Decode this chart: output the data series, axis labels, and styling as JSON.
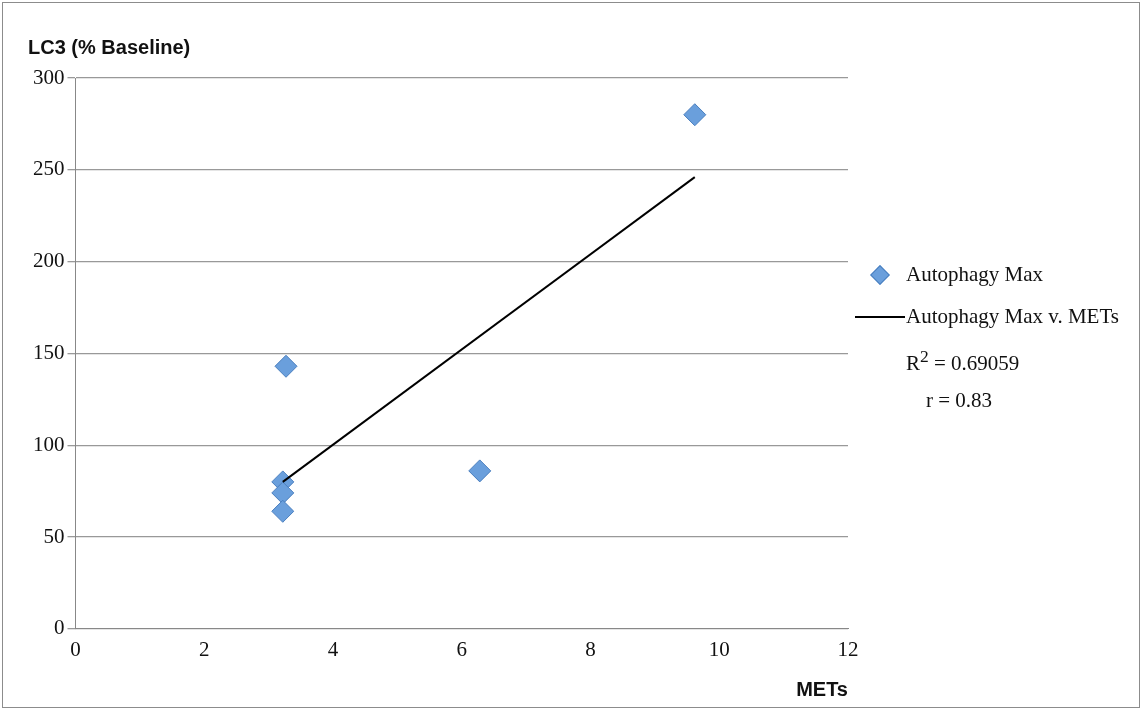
{
  "chart_data": {
    "type": "scatter",
    "ylabel": "LC3 (% Baseline)",
    "xlabel": "METs",
    "xlim": [
      0,
      12
    ],
    "xticks": [
      0,
      2,
      4,
      6,
      8,
      10,
      12
    ],
    "ylim": [
      0,
      300
    ],
    "yticks": [
      0,
      50,
      100,
      150,
      200,
      250,
      300
    ],
    "grid": "y",
    "legend": "right",
    "marker": "diamond",
    "series": [
      {
        "name": "Autophagy Max",
        "color": "#6a9fdc",
        "x": [
          3.27,
          3.22,
          3.22,
          3.22,
          6.28,
          9.62
        ],
        "values": [
          143,
          80,
          74,
          64,
          86,
          280
        ]
      },
      {
        "name": "Autophagy Max v. METs",
        "type": "line",
        "color": "#000000",
        "marker": "none",
        "x": [
          3.22,
          9.62
        ],
        "values": [
          80,
          246
        ]
      }
    ],
    "annotations": [
      "R$^{2}$ = 0.69059",
      "r = 0.83"
    ]
  }
}
